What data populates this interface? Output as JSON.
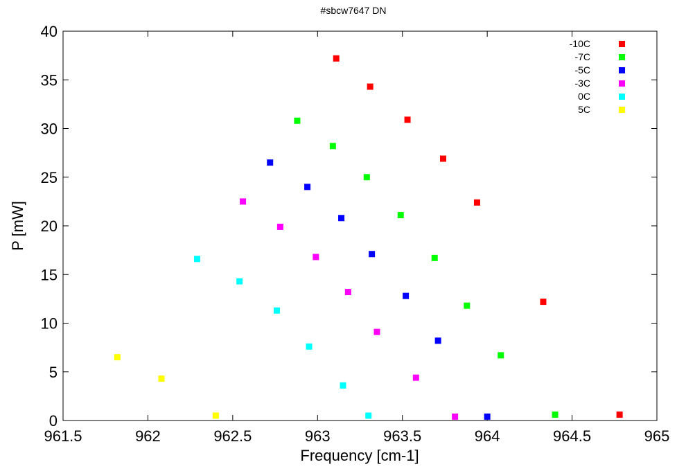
{
  "chart_data": {
    "type": "scatter",
    "title": "#sbcw7647 DN",
    "xlabel": "Frequency [cm-1]",
    "ylabel": "P [mW]",
    "xlim": [
      961.5,
      965
    ],
    "ylim": [
      0,
      40
    ],
    "xticks": [
      961.5,
      962,
      962.5,
      963,
      963.5,
      964,
      964.5,
      965
    ],
    "xtick_labels": [
      "961.5",
      "962",
      "962.5",
      "963",
      "963.5",
      "964",
      "964.5",
      "965"
    ],
    "yticks": [
      0,
      5,
      10,
      15,
      20,
      25,
      30,
      35,
      40
    ],
    "ytick_labels": [
      "0",
      "5",
      "10",
      "15",
      "20",
      "25",
      "30",
      "35",
      "40"
    ],
    "grid": false,
    "legend_position": "top-right",
    "series": [
      {
        "name": "-10C",
        "color": "#ff0000",
        "points": [
          [
            963.11,
            37.2
          ],
          [
            963.31,
            34.3
          ],
          [
            963.53,
            30.9
          ],
          [
            963.74,
            26.9
          ],
          [
            963.94,
            22.4
          ],
          [
            964.33,
            12.2
          ],
          [
            964.78,
            0.6
          ]
        ]
      },
      {
        "name": "-7C",
        "color": "#00ff00",
        "points": [
          [
            962.88,
            30.8
          ],
          [
            963.09,
            28.2
          ],
          [
            963.29,
            25.0
          ],
          [
            963.49,
            21.1
          ],
          [
            963.69,
            16.7
          ],
          [
            963.88,
            11.8
          ],
          [
            964.08,
            6.7
          ],
          [
            964.4,
            0.6
          ]
        ]
      },
      {
        "name": "-5C",
        "color": "#0000ff",
        "points": [
          [
            962.72,
            26.5
          ],
          [
            962.94,
            24.0
          ],
          [
            963.14,
            20.8
          ],
          [
            963.32,
            17.1
          ],
          [
            963.52,
            12.8
          ],
          [
            963.71,
            8.2
          ],
          [
            964.0,
            0.4
          ]
        ]
      },
      {
        "name": "-3C",
        "color": "#ff00ff",
        "points": [
          [
            962.56,
            22.5
          ],
          [
            962.78,
            19.9
          ],
          [
            962.99,
            16.8
          ],
          [
            963.18,
            13.2
          ],
          [
            963.35,
            9.1
          ],
          [
            963.58,
            4.4
          ],
          [
            963.81,
            0.4
          ]
        ]
      },
      {
        "name": "0C",
        "color": "#00ffff",
        "points": [
          [
            962.29,
            16.6
          ],
          [
            962.54,
            14.3
          ],
          [
            962.76,
            11.3
          ],
          [
            962.95,
            7.6
          ],
          [
            963.15,
            3.6
          ],
          [
            963.3,
            0.5
          ]
        ]
      },
      {
        "name": "5C",
        "color": "#ffff00",
        "points": [
          [
            961.82,
            6.5
          ],
          [
            962.08,
            4.3
          ],
          [
            962.4,
            0.5
          ]
        ]
      }
    ]
  }
}
